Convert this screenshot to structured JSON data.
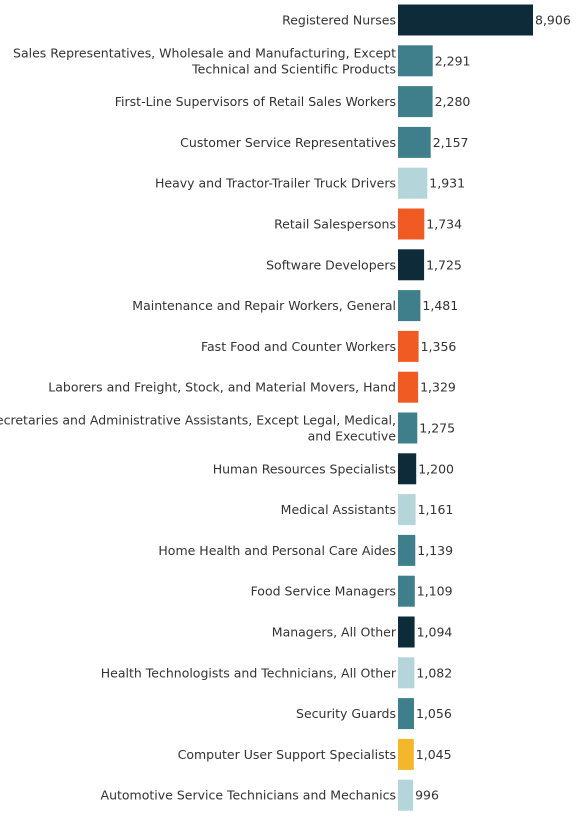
{
  "chart_data": {
    "type": "bar",
    "orientation": "horizontal",
    "title": "",
    "xlabel": "",
    "ylabel": "",
    "grid": false,
    "legend": "none",
    "categories": [
      [
        "Registered Nurses"
      ],
      [
        "Sales Representatives, Wholesale and Manufacturing, Except",
        "Technical and Scientific Products"
      ],
      [
        "First-Line Supervisors of Retail Sales Workers"
      ],
      [
        "Customer Service Representatives"
      ],
      [
        "Heavy and Tractor-Trailer Truck Drivers"
      ],
      [
        "Retail Salespersons"
      ],
      [
        "Software Developers"
      ],
      [
        "Maintenance and Repair Workers, General"
      ],
      [
        "Fast Food and Counter Workers"
      ],
      [
        "Laborers and Freight, Stock, and Material Movers, Hand"
      ],
      [
        "Secretaries and Administrative Assistants, Except Legal, Medical,",
        "and Executive"
      ],
      [
        "Human Resources Specialists"
      ],
      [
        "Medical Assistants"
      ],
      [
        "Home Health and Personal Care Aides"
      ],
      [
        "Food Service Managers"
      ],
      [
        "Managers, All Other"
      ],
      [
        "Health Technologists and Technicians, All Other"
      ],
      [
        "Security Guards"
      ],
      [
        "Computer User Support Specialists"
      ],
      [
        "Automotive Service Technicians and Mechanics"
      ]
    ],
    "values": [
      8906,
      2291,
      2280,
      2157,
      1931,
      1734,
      1725,
      1481,
      1356,
      1329,
      1275,
      1200,
      1161,
      1139,
      1109,
      1094,
      1082,
      1056,
      1045,
      996
    ],
    "value_labels": [
      "8,906",
      "2,291",
      "2,280",
      "2,157",
      "1,931",
      "1,734",
      "1,725",
      "1,481",
      "1,356",
      "1,329",
      "1,275",
      "1,200",
      "1,161",
      "1,139",
      "1,109",
      "1,094",
      "1,082",
      "1,056",
      "1,045",
      "996"
    ],
    "bar_colors": [
      "#0d2b38",
      "#3f7f8c",
      "#3f7f8c",
      "#3f7f8c",
      "#b4d5da",
      "#f05a23",
      "#0d2b38",
      "#3f7f8c",
      "#f05a23",
      "#f05a23",
      "#3f7f8c",
      "#0d2b38",
      "#b4d5da",
      "#3f7f8c",
      "#3f7f8c",
      "#0d2b38",
      "#b4d5da",
      "#3f7f8c",
      "#f2b72a",
      "#b4d5da"
    ],
    "xlim": [
      0,
      8906
    ]
  }
}
